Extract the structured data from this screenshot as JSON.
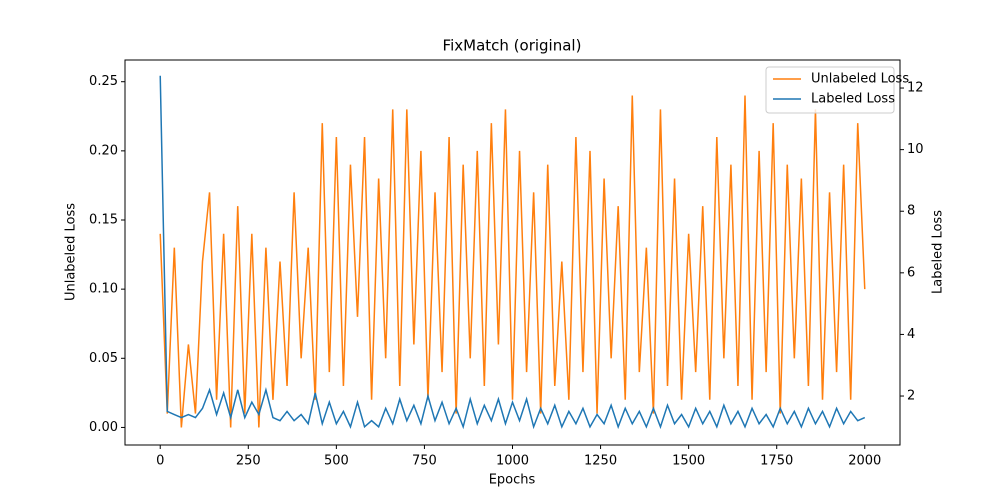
{
  "chart_data": {
    "type": "line",
    "title": "FixMatch (original)",
    "x_label": "Epochs",
    "y_label": "Unlabeled Loss",
    "y2_label": "Labeled Loss",
    "x": [
      0,
      20,
      40,
      60,
      80,
      100,
      120,
      140,
      160,
      180,
      200,
      220,
      240,
      260,
      280,
      300,
      320,
      340,
      360,
      380,
      400,
      420,
      440,
      460,
      480,
      500,
      520,
      540,
      560,
      580,
      600,
      620,
      640,
      660,
      680,
      700,
      720,
      740,
      760,
      780,
      800,
      820,
      840,
      860,
      880,
      900,
      920,
      940,
      960,
      980,
      1000,
      1020,
      1040,
      1060,
      1080,
      1100,
      1120,
      1140,
      1160,
      1180,
      1200,
      1220,
      1240,
      1260,
      1280,
      1300,
      1320,
      1340,
      1360,
      1380,
      1400,
      1420,
      1440,
      1460,
      1480,
      1500,
      1520,
      1540,
      1560,
      1580,
      1600,
      1620,
      1640,
      1660,
      1680,
      1700,
      1720,
      1740,
      1760,
      1780,
      1800,
      1820,
      1840,
      1860,
      1880,
      1900,
      1920,
      1940,
      1960,
      1980,
      2000
    ],
    "series": [
      {
        "name": "Unlabeled Loss",
        "color": "#ff7f0e",
        "values": [
          0.14,
          0.01,
          0.13,
          0.0,
          0.06,
          0.01,
          0.12,
          0.17,
          0.02,
          0.14,
          0.0,
          0.16,
          0.01,
          0.14,
          0.0,
          0.13,
          0.02,
          0.12,
          0.03,
          0.17,
          0.05,
          0.13,
          0.02,
          0.22,
          0.04,
          0.21,
          0.03,
          0.19,
          0.08,
          0.21,
          0.02,
          0.18,
          0.05,
          0.23,
          0.03,
          0.23,
          0.06,
          0.2,
          0.02,
          0.17,
          0.04,
          0.21,
          0.01,
          0.19,
          0.05,
          0.2,
          0.03,
          0.22,
          0.06,
          0.23,
          0.02,
          0.2,
          0.04,
          0.17,
          0.01,
          0.19,
          0.03,
          0.12,
          0.02,
          0.21,
          0.04,
          0.2,
          0.01,
          0.18,
          0.05,
          0.16,
          0.02,
          0.24,
          0.04,
          0.13,
          0.01,
          0.23,
          0.03,
          0.18,
          0.02,
          0.14,
          0.04,
          0.16,
          0.02,
          0.21,
          0.05,
          0.19,
          0.03,
          0.24,
          0.02,
          0.2,
          0.04,
          0.22,
          0.01,
          0.19,
          0.05,
          0.18,
          0.03,
          0.23,
          0.02,
          0.17,
          0.04,
          0.19,
          0.02,
          0.22,
          0.1
        ]
      },
      {
        "name": "Labeled Loss",
        "color": "#1f77b4",
        "axis": "y2",
        "values": [
          12.4,
          1.5,
          1.4,
          1.3,
          1.4,
          1.3,
          1.6,
          2.2,
          1.4,
          2.1,
          1.3,
          2.2,
          1.3,
          1.8,
          1.4,
          2.2,
          1.3,
          1.2,
          1.5,
          1.2,
          1.4,
          1.1,
          2.1,
          1.1,
          1.8,
          1.1,
          1.5,
          1.0,
          1.8,
          1.0,
          1.2,
          1.0,
          1.6,
          1.1,
          1.9,
          1.2,
          1.7,
          1.1,
          2.0,
          1.2,
          1.8,
          1.1,
          1.6,
          1.0,
          1.9,
          1.1,
          1.7,
          1.2,
          1.9,
          1.1,
          1.8,
          1.2,
          1.9,
          1.0,
          1.6,
          1.1,
          1.7,
          1.0,
          1.5,
          1.1,
          1.6,
          1.0,
          1.4,
          1.1,
          1.7,
          1.0,
          1.6,
          1.1,
          1.5,
          1.0,
          1.6,
          1.0,
          1.7,
          1.1,
          1.4,
          1.0,
          1.6,
          1.1,
          1.5,
          1.0,
          1.7,
          1.1,
          1.5,
          1.0,
          1.6,
          1.1,
          1.4,
          1.0,
          1.6,
          1.1,
          1.5,
          1.0,
          1.6,
          1.1,
          1.5,
          1.0,
          1.6,
          1.1,
          1.5,
          1.2,
          1.3
        ]
      }
    ],
    "xlim": [
      -100,
      2100
    ],
    "xticks": [
      0,
      250,
      500,
      750,
      1000,
      1250,
      1500,
      1750,
      2000
    ],
    "ylim": [
      -0.0127,
      0.2657
    ],
    "yticks": [
      {
        "value": 0,
        "label": "0.00"
      },
      {
        "value": 0.05,
        "label": "0.05"
      },
      {
        "value": 0.1,
        "label": "0.10"
      },
      {
        "value": 0.15,
        "label": "0.15"
      },
      {
        "value": 0.2,
        "label": "0.20"
      },
      {
        "value": 0.25,
        "label": "0.25"
      }
    ],
    "y2lim": [
      0.41,
      12.91
    ],
    "y2ticks": [
      2,
      4,
      6,
      8,
      10,
      12
    ],
    "legend": "upper right"
  }
}
